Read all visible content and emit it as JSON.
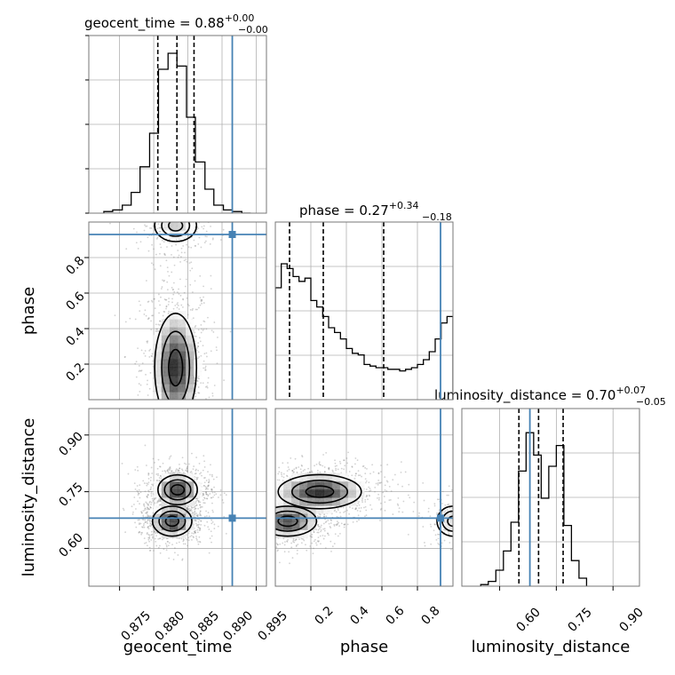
{
  "chart_data": {
    "type": "corner",
    "parameters": [
      "geocent_time",
      "phase",
      "luminosity_distance"
    ],
    "truths": {
      "geocent_time": 0.8915,
      "phase": 0.93,
      "luminosity_distance": 0.68
    },
    "colors": {
      "truth": "#4682b4",
      "hist": "#000000",
      "grid": "#b0b0b0",
      "scatter": "#7f7f7f"
    },
    "grid": true,
    "panels": {
      "geocent_time": {
        "title": "geocent_time = 0.88",
        "title_sup": "+0.00",
        "title_sub": "−0.00",
        "range": [
          0.8705,
          0.8965
        ],
        "ticks": [
          0.875,
          0.88,
          0.885,
          0.89,
          0.895
        ],
        "tick_labels": [
          "0.875",
          "0.880",
          "0.885",
          "0.890",
          "0.895"
        ],
        "quantiles": [
          0.8806,
          0.8834,
          0.8859
        ],
        "bin_edges": [
          0.8727,
          0.874,
          0.8754,
          0.8767,
          0.878,
          0.8794,
          0.8807,
          0.8821,
          0.8834,
          0.8848,
          0.8861,
          0.8875,
          0.8888,
          0.8902,
          0.8915,
          0.8929,
          0.8942
        ],
        "counts": [
          0.01,
          0.02,
          0.05,
          0.13,
          0.29,
          0.5,
          0.9,
          1.0,
          0.92,
          0.6,
          0.32,
          0.15,
          0.05,
          0.02,
          0.01,
          0.0
        ]
      },
      "phase": {
        "title": "phase = 0.27",
        "title_sup": "+0.34",
        "title_sub": "−0.18",
        "range": [
          0.0,
          1.0
        ],
        "ticks": [
          0.2,
          0.4,
          0.6,
          0.8
        ],
        "tick_labels": [
          "0.2",
          "0.4",
          "0.6",
          "0.8"
        ],
        "quantiles": [
          0.08,
          0.27,
          0.61
        ],
        "counts": [
          0.7,
          0.85,
          0.82,
          0.77,
          0.74,
          0.76,
          0.62,
          0.58,
          0.52,
          0.45,
          0.42,
          0.38,
          0.32,
          0.29,
          0.28,
          0.22,
          0.21,
          0.2,
          0.2,
          0.19,
          0.19,
          0.18,
          0.19,
          0.2,
          0.22,
          0.25,
          0.3,
          0.38,
          0.48,
          0.52
        ]
      },
      "luminosity_distance": {
        "title": "luminosity_distance = 0.70",
        "title_sup": "+0.07",
        "title_sub": "−0.05",
        "range": [
          0.5,
          0.97
        ],
        "ticks": [
          0.6,
          0.75,
          0.9
        ],
        "tick_labels": [
          "0.60",
          "0.75",
          "0.90"
        ],
        "quantiles": [
          0.651,
          0.703,
          0.768
        ],
        "bin_edges": [
          0.55,
          0.57,
          0.59,
          0.61,
          0.63,
          0.65,
          0.67,
          0.69,
          0.71,
          0.73,
          0.75,
          0.77,
          0.79,
          0.81,
          0.83
        ],
        "counts": [
          0.01,
          0.03,
          0.1,
          0.22,
          0.4,
          0.72,
          0.96,
          0.82,
          0.55,
          0.75,
          0.88,
          0.38,
          0.16,
          0.05
        ]
      }
    },
    "tick_labels_left": {
      "phase": [
        "0.2",
        "0.4",
        "0.6",
        "0.8"
      ],
      "luminosity_distance": [
        "0.60",
        "0.75",
        "0.90"
      ]
    },
    "blobs": {
      "geocent_time_vs_phase": [
        {
          "x": 0.8832,
          "y": 0.18,
          "sx": 0.0017,
          "sy": 0.17,
          "w": 1.0
        },
        {
          "x": 0.8832,
          "y": 0.98,
          "sx": 0.0017,
          "sy": 0.05,
          "w": 0.35
        }
      ],
      "geocent_time_vs_luminosity_distance": [
        {
          "x": 0.8835,
          "y": 0.755,
          "sx": 0.0016,
          "sy": 0.022,
          "w": 1.0
        },
        {
          "x": 0.8827,
          "y": 0.672,
          "sx": 0.0016,
          "sy": 0.022,
          "w": 0.95
        }
      ],
      "phase_vs_luminosity_distance": [
        {
          "x": 0.25,
          "y": 0.75,
          "sx": 0.13,
          "sy": 0.025,
          "w": 1.0
        },
        {
          "x": 0.07,
          "y": 0.672,
          "sx": 0.09,
          "sy": 0.022,
          "w": 0.9
        },
        {
          "x": 1.0,
          "y": 0.672,
          "sx": 0.05,
          "sy": 0.022,
          "w": 0.3
        }
      ]
    }
  }
}
